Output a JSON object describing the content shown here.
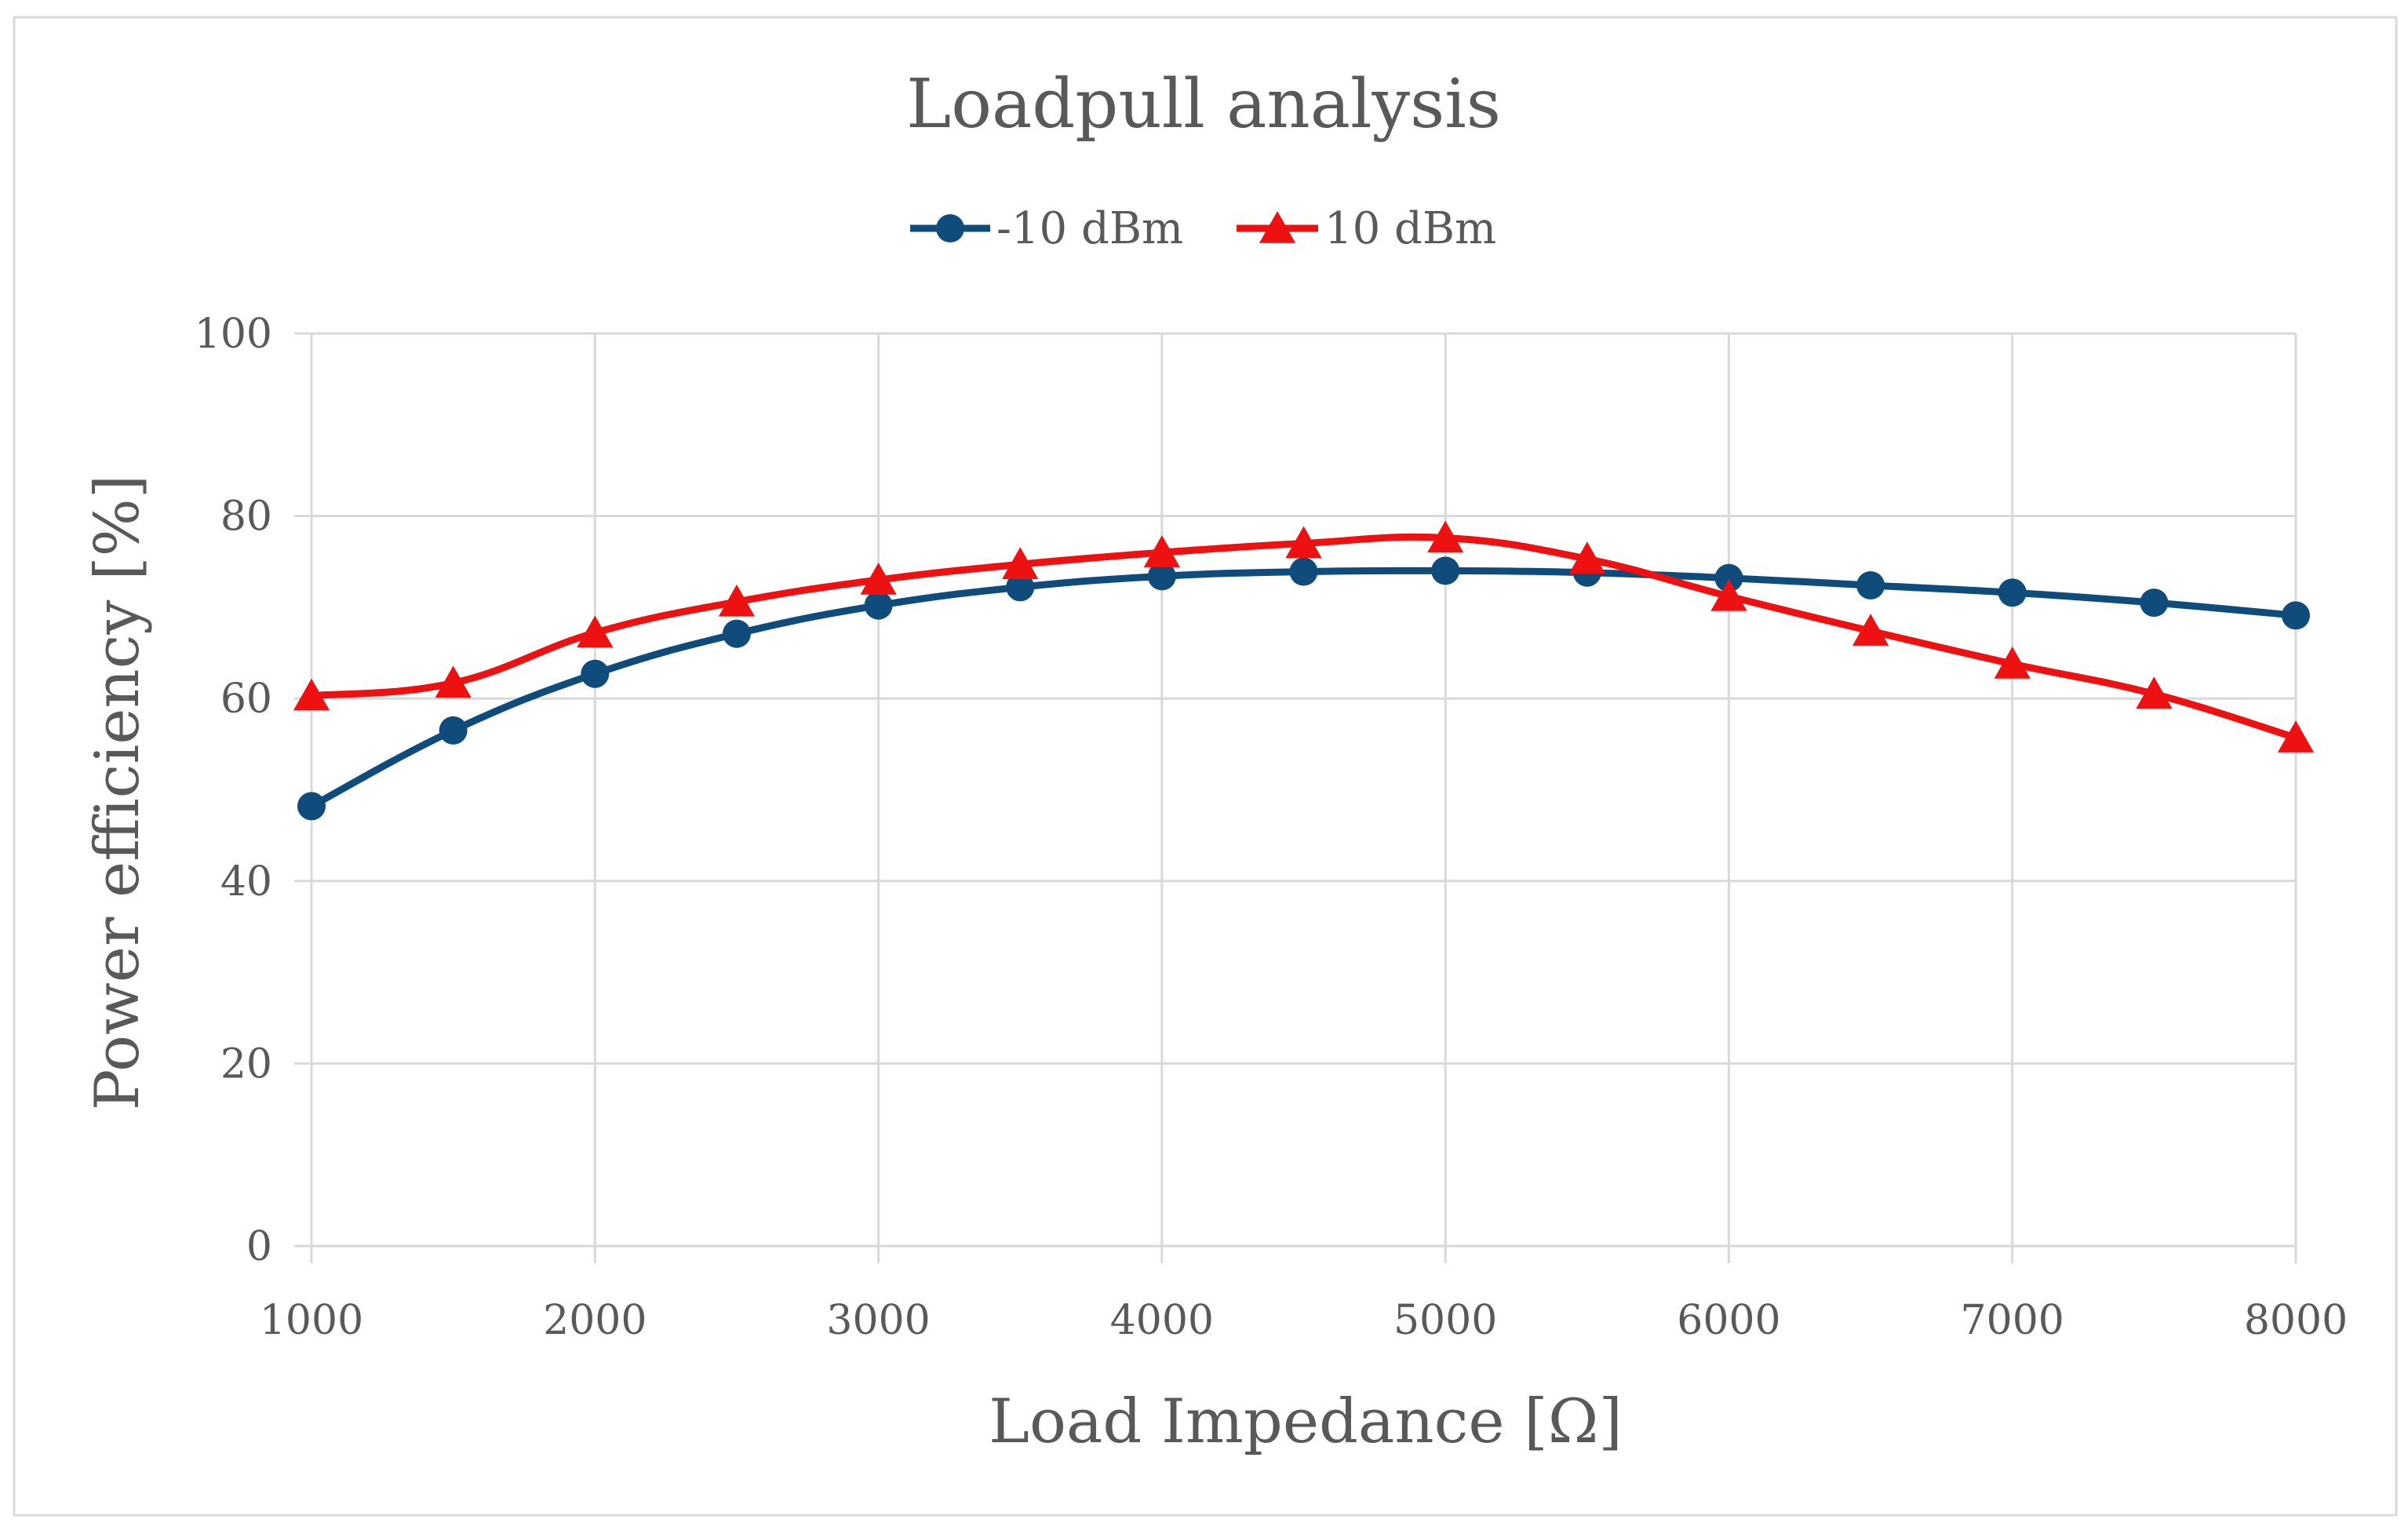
{
  "chart_data": {
    "type": "line",
    "title": "Loadpull analysis",
    "xlabel": "Load Impedance [Ω]",
    "ylabel": "Power efficiency [%]",
    "xlim": [
      1000,
      8000
    ],
    "ylim": [
      0,
      100
    ],
    "x_ticks": [
      "1000",
      "2000",
      "3000",
      "4000",
      "5000",
      "6000",
      "7000",
      "8000"
    ],
    "y_ticks": [
      "0",
      "20",
      "40",
      "60",
      "80",
      "100"
    ],
    "x_tick_values": [
      1000,
      2000,
      3000,
      4000,
      5000,
      6000,
      7000,
      8000
    ],
    "y_tick_values": [
      0,
      20,
      40,
      60,
      80,
      100
    ],
    "grid": true,
    "legend_position": "top-center",
    "x": [
      1000,
      1500,
      2000,
      2500,
      3000,
      3500,
      4000,
      4500,
      5000,
      5500,
      6000,
      6500,
      7000,
      7500,
      8000
    ],
    "series": [
      {
        "name": "-10 dBm",
        "color": "#0f4c7c",
        "marker": "circle",
        "values": [
          48.2,
          56.5,
          62.7,
          67.1,
          70.2,
          72.2,
          73.4,
          73.9,
          74.0,
          73.8,
          73.2,
          72.4,
          71.6,
          70.5,
          69.1
        ]
      },
      {
        "name": "10 dBm",
        "color": "#ee1111",
        "marker": "triangle",
        "values": [
          60.3,
          61.7,
          67.2,
          70.6,
          73.0,
          74.7,
          76.0,
          77.0,
          77.6,
          75.3,
          71.2,
          67.4,
          63.8,
          60.5,
          55.7
        ]
      }
    ],
    "colors": {
      "gridline": "#d9d9d9",
      "axis_text": "#595959"
    }
  }
}
